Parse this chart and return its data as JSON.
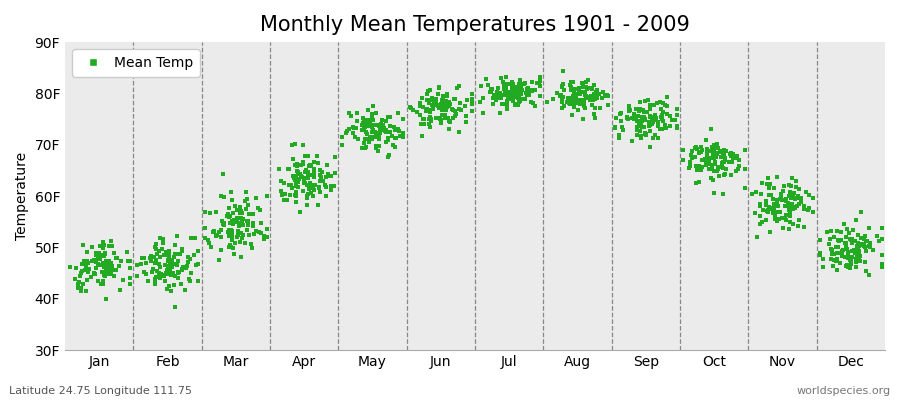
{
  "title": "Monthly Mean Temperatures 1901 - 2009",
  "ylabel": "Temperature",
  "month_labels": [
    "Jan",
    "Feb",
    "Mar",
    "Apr",
    "May",
    "Jun",
    "Jul",
    "Aug",
    "Sep",
    "Oct",
    "Nov",
    "Dec"
  ],
  "ylim": [
    30,
    90
  ],
  "yticks": [
    30,
    40,
    50,
    60,
    70,
    80,
    90
  ],
  "ytick_labels": [
    "30F",
    "40F",
    "50F",
    "60F",
    "70F",
    "80F",
    "90F"
  ],
  "years": 109,
  "marker_color": "#22aa22",
  "marker": "s",
  "marker_size": 3.5,
  "background_color": "#ffffff",
  "plot_bg_color": "#ebebeb",
  "legend_label": "Mean Temp",
  "footer_left": "Latitude 24.75 Longitude 111.75",
  "footer_right": "worldspecies.org",
  "title_fontsize": 15,
  "axis_fontsize": 10,
  "footer_fontsize": 8,
  "monthly_mean_temps_F": [
    46.5,
    46.5,
    55.0,
    63.5,
    72.5,
    77.0,
    80.0,
    79.5,
    75.0,
    67.0,
    58.5,
    49.5
  ],
  "monthly_std_F": [
    2.5,
    2.5,
    3.0,
    2.5,
    2.0,
    1.8,
    1.5,
    1.5,
    2.0,
    2.2,
    2.5,
    2.5
  ],
  "monthly_spread_F": [
    4.0,
    4.5,
    5.0,
    4.5,
    3.5,
    3.0,
    2.5,
    2.5,
    3.5,
    4.0,
    4.5,
    5.0
  ]
}
